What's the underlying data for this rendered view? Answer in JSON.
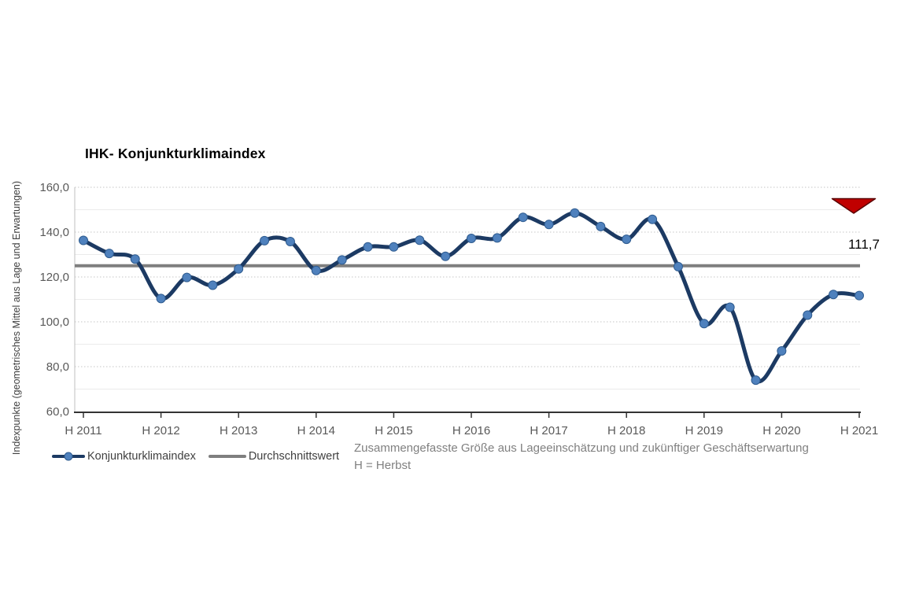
{
  "title": "IHK- Konjunkturklimaindex",
  "y_axis_title": "Indexpunkte (geometrisches Mittel aus Lage und Erwartungen)",
  "annotation": {
    "value_label": "111,7",
    "arrow_icon": "red-down-arrow",
    "arrow_color": "#C00000",
    "arrow_border_color": "#5A0000"
  },
  "footnote": {
    "line1": "Zusammengefasste Größe aus Lageeinschätzung und zukünftiger Geschäftserwartung",
    "line2": "H = Herbst"
  },
  "colors": {
    "series_line": "#1C3A63",
    "marker_fill": "#4F81BD",
    "marker_border": "#2E5B8F",
    "average_line": "#7F7F7F",
    "major_gridline": "#C6C6C6",
    "minor_gridline": "#EBEBEB",
    "axis_line": "#333333",
    "tick_label": "#595959"
  },
  "chart_data": {
    "type": "line",
    "title": "IHK- Konjunkturklimaindex",
    "ylabel": "Indexpunkte (geometrisches Mittel aus Lage und Erwartungen)",
    "xlabel": "",
    "ylim": [
      60,
      160
    ],
    "grid": "horizontal, major dashed every 20 labeled / minor solid every 10",
    "legend_position": "bottom-left",
    "points_per_year": 3,
    "x_ticks": [
      {
        "label": "H 2011",
        "index": 0
      },
      {
        "label": "H 2012",
        "index": 3
      },
      {
        "label": "H 2013",
        "index": 6
      },
      {
        "label": "H 2014",
        "index": 9
      },
      {
        "label": "H 2015",
        "index": 12
      },
      {
        "label": "H 2016",
        "index": 15
      },
      {
        "label": "H 2017",
        "index": 18
      },
      {
        "label": "H 2018",
        "index": 21
      },
      {
        "label": "H 2019",
        "index": 24
      },
      {
        "label": "H 2020",
        "index": 27
      },
      {
        "label": "H 2021",
        "index": 30
      }
    ],
    "y_ticks": [
      {
        "label": "160,0",
        "value": 160
      },
      {
        "label": "140,0",
        "value": 140
      },
      {
        "label": "120,0",
        "value": 120
      },
      {
        "label": "100,0",
        "value": 100
      },
      {
        "label": "80,0",
        "value": 80
      },
      {
        "label": "60,0",
        "value": 60
      }
    ],
    "series": [
      {
        "name": "Konjunkturklimaindex",
        "type": "smooth-line-with-markers",
        "values": [
          136.3,
          130.5,
          128.0,
          110.4,
          119.8,
          116.3,
          123.6,
          136.2,
          135.8,
          122.9,
          127.6,
          133.4,
          133.4,
          136.4,
          129.2,
          137.2,
          137.4,
          146.6,
          143.4,
          148.5,
          142.5,
          136.8,
          145.7,
          124.6,
          99.2,
          106.5,
          74.0,
          87.0,
          103.0,
          112.2,
          111.7
        ],
        "last_value_label": "111,7"
      },
      {
        "name": "Durchschnittswert",
        "type": "horizontal-reference-line",
        "value": 125
      }
    ]
  }
}
